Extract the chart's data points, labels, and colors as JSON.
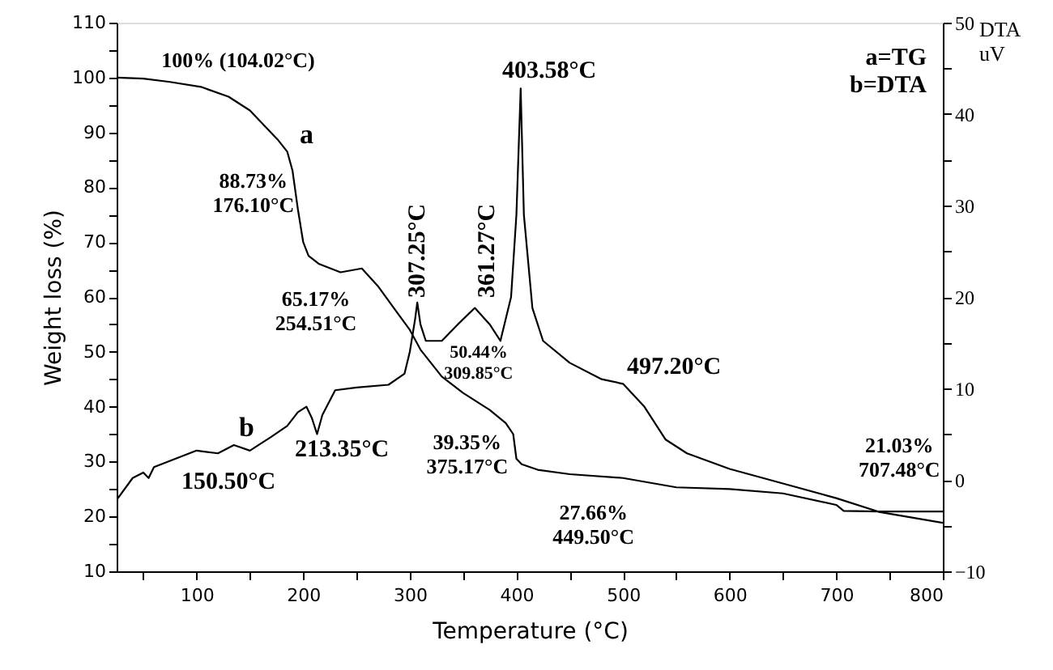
{
  "chart_data": {
    "type": "line",
    "xlabel": "Temperature (°C)",
    "ylabel": "Weight loss (%)",
    "y2label": "DTA\nuV",
    "xlim": [
      25,
      800
    ],
    "xticks": [
      {
        "value": 50,
        "label": null
      },
      100,
      {
        "value": 150,
        "label": null
      },
      200,
      {
        "value": 250,
        "label": null
      },
      300,
      {
        "value": 350,
        "label": null
      },
      400,
      {
        "value": 450,
        "label": null
      },
      500,
      {
        "value": 550,
        "label": null
      },
      600,
      {
        "value": 650,
        "label": null
      },
      700,
      {
        "value": 750,
        "label": null
      },
      800
    ],
    "ylim": [
      10,
      110
    ],
    "yticks": [
      10,
      {
        "value": 15,
        "label": null
      },
      20,
      {
        "value": 25,
        "label": null
      },
      30,
      {
        "value": 35,
        "label": null
      },
      40,
      {
        "value": 45,
        "label": null
      },
      50,
      {
        "value": 55,
        "label": null
      },
      60,
      {
        "value": 65,
        "label": null
      },
      70,
      {
        "value": 75,
        "label": null
      },
      80,
      {
        "value": 85,
        "label": null
      },
      90,
      {
        "value": 95,
        "label": null
      },
      100,
      {
        "value": 105,
        "label": null
      },
      110
    ],
    "y2lim": [
      -10,
      50
    ],
    "y2ticks": [
      -10,
      {
        "value": -5,
        "label": null
      },
      0,
      {
        "value": 5,
        "label": null
      },
      10,
      {
        "value": 15,
        "label": null
      },
      20,
      {
        "value": 25,
        "label": null
      },
      30,
      {
        "value": 35,
        "label": null
      },
      40,
      {
        "value": 45,
        "label": null
      },
      50
    ],
    "grid": false,
    "legend": false,
    "marker": "none",
    "line_style": "solid",
    "series": [
      {
        "name": "a",
        "color": "#000000",
        "x": [
          25,
          50,
          75,
          104,
          130,
          150,
          176,
          185,
          190,
          195,
          200,
          205,
          215,
          235,
          255,
          270,
          285,
          300,
          310,
          330,
          350,
          375,
          390,
          397,
          400,
          405,
          420,
          450,
          500,
          550,
          600,
          650,
          700,
          707,
          740,
          800
        ],
        "values": [
          100,
          99.8,
          99.2,
          98.3,
          96.5,
          94,
          88.7,
          86.5,
          83,
          76,
          70,
          67.5,
          66,
          64.5,
          65.2,
          62,
          58,
          54,
          50.4,
          45.5,
          42.5,
          39.4,
          37,
          35,
          30.5,
          29.5,
          28.5,
          27.7,
          27,
          25.3,
          25,
          24.2,
          22.1,
          21,
          20.9,
          20.9
        ]
      },
      {
        "name": "b",
        "color": "#000000",
        "axis": "y2",
        "x": [
          25,
          40,
          50,
          55,
          60,
          80,
          100,
          120,
          135,
          150,
          170,
          185,
          195,
          203,
          208,
          213,
          218,
          230,
          250,
          280,
          295,
          300,
          305,
          307,
          310,
          315,
          330,
          345,
          361,
          375,
          385,
          395,
          400,
          404,
          407,
          415,
          425,
          450,
          480,
          500,
          520,
          540,
          560,
          600,
          650,
          700,
          740,
          800
        ],
        "values": [
          -2.2,
          0.2,
          0.8,
          0.2,
          1.4,
          2.3,
          3.2,
          2.9,
          3.8,
          3.2,
          4.7,
          5.9,
          7.4,
          8,
          6.8,
          5,
          7.1,
          9.8,
          10.1,
          10.4,
          11.6,
          14,
          17.6,
          19.4,
          17,
          15.2,
          15.2,
          17,
          18.8,
          17,
          15.2,
          20,
          29,
          42.8,
          29,
          18.8,
          15.2,
          12.8,
          11,
          10.5,
          8,
          4.4,
          2.9,
          1.2,
          -0.4,
          -2,
          -3.5,
          -4.7
        ]
      }
    ],
    "annotations": [
      {
        "text": "100%  (104.02°C)",
        "x": 104.02,
        "y": 98.3
      },
      {
        "text": "88.73%\n176.10°C",
        "x": 176.1,
        "y": 88.73
      },
      {
        "text": "65.17%\n254.51°C",
        "x": 254.51,
        "y": 65.17
      },
      {
        "text": "50.44%\n309.85°C",
        "x": 309.85,
        "y": 50.44
      },
      {
        "text": "39.35%\n375.17°C",
        "x": 375.17,
        "y": 39.35
      },
      {
        "text": "27.66%\n449.50°C",
        "x": 449.5,
        "y": 27.66
      },
      {
        "text": "21.03%\n707.48°C",
        "x": 707.48,
        "y": 21.03
      },
      "403.58°C",
      "307.25°C",
      "361.27°C",
      "497.20°C",
      "213.35°C",
      "150.50°C",
      "a=TG\nb=DTA"
    ]
  }
}
